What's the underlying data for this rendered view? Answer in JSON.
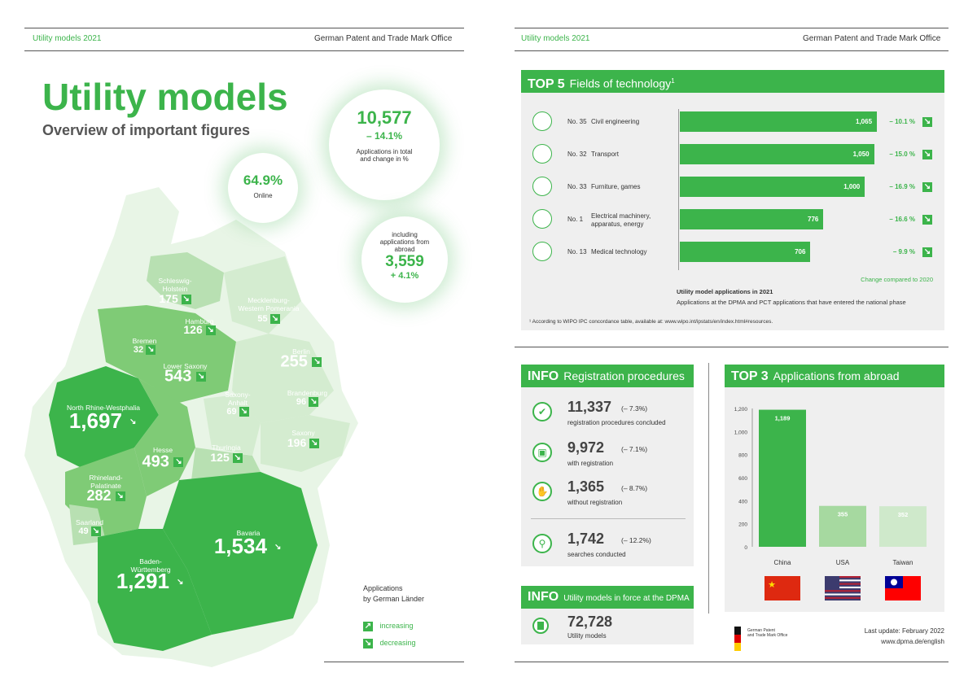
{
  "left": {
    "header_left": "Utility models 2021",
    "header_right": "German Patent and Trade Mark Office",
    "title": "Utility models",
    "subtitle": "Overview of important figures",
    "total": {
      "value": "10,577",
      "change": "– 14.1%",
      "caption1": "Applications in total",
      "caption2": "and change in %"
    },
    "online": {
      "value": "64.9%",
      "caption": "Online"
    },
    "abroad": {
      "c1": "including",
      "c2": "applications from",
      "c3": "abroad",
      "value": "3,559",
      "change": "+ 4.1%"
    },
    "legend": {
      "title1": "Applications",
      "title2": "by German Länder",
      "increasing": "increasing",
      "decreasing": "decreasing"
    },
    "states": [
      {
        "name": "Schleswig-\nHolstein",
        "value": "175"
      },
      {
        "name": "Mecklenburg-\nWestern Pomerania",
        "value": "55"
      },
      {
        "name": "Hamburg",
        "value": "126"
      },
      {
        "name": "Bremen",
        "value": "32"
      },
      {
        "name": "Lower Saxony",
        "value": "543"
      },
      {
        "name": "Berlin",
        "value": "255"
      },
      {
        "name": "Brandenburg",
        "value": "96"
      },
      {
        "name": "Saxony-\nAnhalt",
        "value": "69"
      },
      {
        "name": "North Rhine-Westphalia",
        "value": "1,697"
      },
      {
        "name": "Saxony",
        "value": "196"
      },
      {
        "name": "Hesse",
        "value": "493"
      },
      {
        "name": "Thuringia",
        "value": "125"
      },
      {
        "name": "Rhineland-\nPalatinate",
        "value": "282"
      },
      {
        "name": "Saarland",
        "value": "49"
      },
      {
        "name": "Bavaria",
        "value": "1,534"
      },
      {
        "name": "Baden-\nWürttemberg",
        "value": "1,291"
      }
    ]
  },
  "right": {
    "header_left": "Utility models 2021",
    "header_right": "German Patent and Trade Mark Office",
    "top5": {
      "tag": "TOP 5",
      "title": "Fields of technology",
      "sup": "1",
      "rows": [
        {
          "no": "No. 35",
          "label": "Civil engineering",
          "value": 1065,
          "display": "1,065",
          "change": "– 10.1 %"
        },
        {
          "no": "No. 32",
          "label": "Transport",
          "value": 1050,
          "display": "1,050",
          "change": "– 15.0 %"
        },
        {
          "no": "No. 33",
          "label": "Furniture, games",
          "value": 1000,
          "display": "1,000",
          "change": "– 16.9 %"
        },
        {
          "no": "No. 1",
          "label": "Electrical machinery,\napparatus, energy",
          "value": 776,
          "display": "776",
          "change": "– 16.6 %"
        },
        {
          "no": "No. 13",
          "label": "Medical technology",
          "value": 706,
          "display": "706",
          "change": "– 9.9 %"
        }
      ],
      "change_note": "Change compared to 2020",
      "note_title": "Utility model applications in 2021",
      "note_text": "Applications at the DPMA and PCT applications that have entered the national phase",
      "footnote": "¹ According to WIPO IPC concordance table, available at: www.wipo.int/ipstats/en/index.html#resources."
    },
    "info1": {
      "tag": "INFO",
      "title": "Registration procedures",
      "items": [
        {
          "value": "11,337",
          "change": "(– 7.3%)",
          "caption": "registration procedures concluded"
        },
        {
          "value": "9,972",
          "change": "(– 7.1%)",
          "caption": "with registration"
        },
        {
          "value": "1,365",
          "change": "(– 8.7%)",
          "caption": "without registration"
        },
        {
          "value": "1,742",
          "change": "(– 12.2%)",
          "caption": "searches conducted"
        }
      ]
    },
    "info2": {
      "tag": "INFO",
      "title": "Utility models in force at the DPMA",
      "value": "72,728",
      "caption": "Utility models"
    },
    "top3": {
      "tag": "TOP 3",
      "title": "Applications from abroad"
    },
    "logo_text": "German Patent\nand Trade Mark Office",
    "last_update": "Last update: February 2022",
    "url": "www.dpma.de/english"
  },
  "chart_data": [
    {
      "type": "bar",
      "orientation": "horizontal",
      "title": "Fields of technology",
      "categories": [
        "Civil engineering",
        "Transport",
        "Furniture, games",
        "Electrical machinery, apparatus, energy",
        "Medical technology"
      ],
      "values": [
        1065,
        1050,
        1000,
        776,
        706
      ],
      "change": [
        "-10.1%",
        "-15.0%",
        "-16.9%",
        "-16.6%",
        "-9.9%"
      ]
    },
    {
      "type": "bar",
      "title": "Applications from abroad",
      "categories": [
        "China",
        "USA",
        "Taiwan"
      ],
      "values": [
        1189,
        355,
        352
      ],
      "ylim": [
        0,
        1200
      ],
      "yticks": [
        0,
        200,
        400,
        600,
        800,
        1000,
        1200
      ],
      "colors": [
        "#3cb44b",
        "#a6d9a0",
        "#cfe9cb"
      ]
    }
  ],
  "colors": {
    "green": "#3cb44b",
    "light_green": "#a6d9a0",
    "pale_green": "#cfe9cb",
    "card": "#efefef"
  }
}
